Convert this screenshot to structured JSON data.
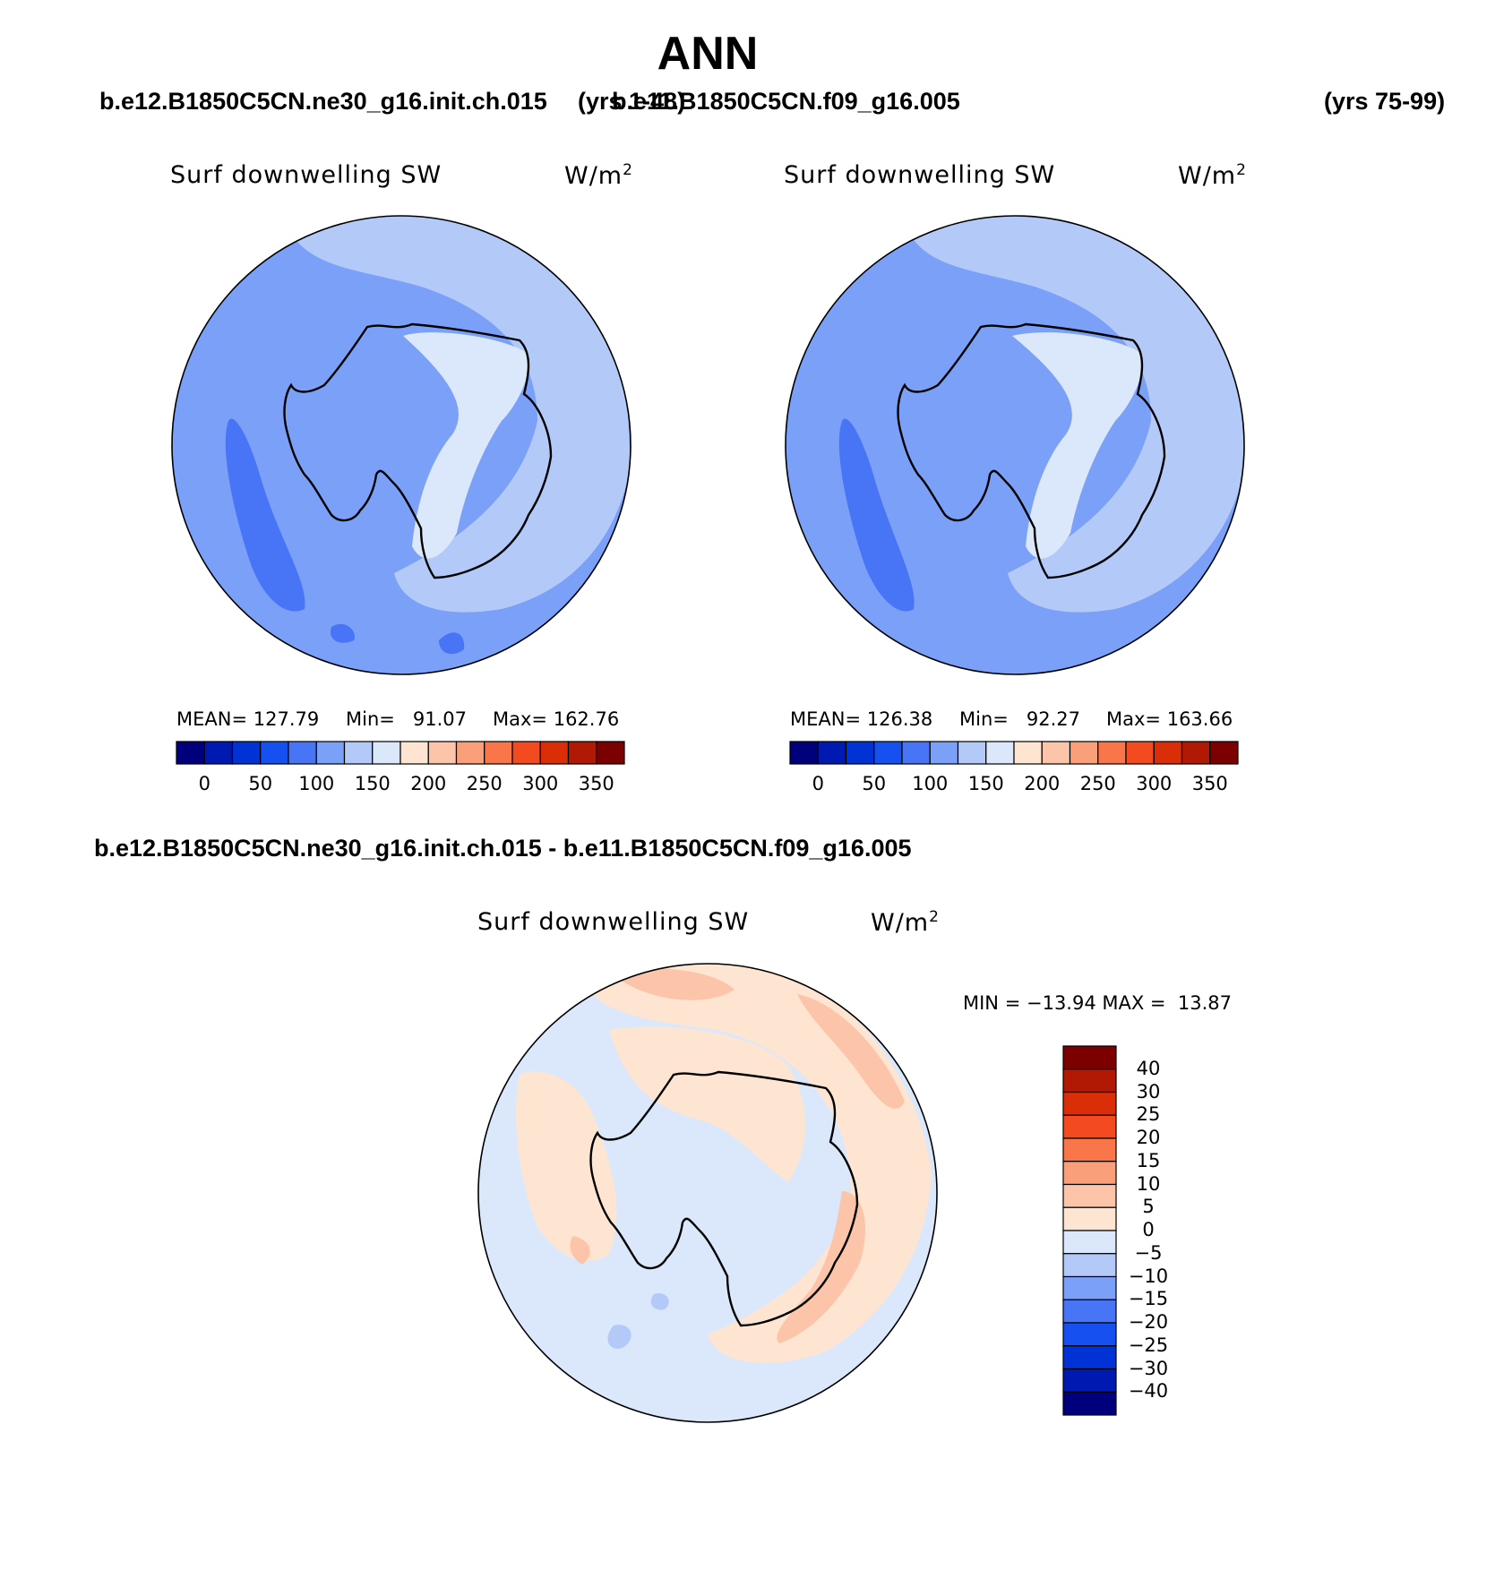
{
  "page": {
    "title": "ANN",
    "case1": "b.e12.B1850C5CN.ne30_g16.init.ch.015",
    "case1_years": "(yrs 1-48)",
    "case2": "b.e11.B1850C5CN.f09_g16.005",
    "case2_years": "(yrs 75-99)",
    "diff_title": "b.e12.B1850C5CN.ne30_g16.init.ch.015 - b.e11.B1850C5CN.f09_g16.005"
  },
  "colors": {
    "abs_levels": [
      "#00007d",
      "#0019b0",
      "#0032d6",
      "#1750f0",
      "#4775f5",
      "#7aa0f8",
      "#b3caf9",
      "#dbe8fb",
      "#fde5d2",
      "#fcc5aa",
      "#f9a07a",
      "#f8764a",
      "#f44a20",
      "#d92e08",
      "#b21905",
      "#7d0000"
    ],
    "diff_levels": [
      "#00007d",
      "#0019b0",
      "#0032d6",
      "#1750f0",
      "#4775f5",
      "#7aa0f8",
      "#b3caf9",
      "#dbe8fb",
      "#fde5d2",
      "#fcc5aa",
      "#f9a07a",
      "#f8764a",
      "#f44a20",
      "#d92e08",
      "#b21905",
      "#7d0000"
    ],
    "antarctica_line": "#000000"
  },
  "chart_data": [
    {
      "type": "heatmap",
      "projection": "south-polar-stereographic",
      "title": "Surf downwelling SW",
      "units": "W/m",
      "units_sup": "2",
      "mean_label": "MEAN=",
      "mean": "127.79",
      "min_label": "Min=",
      "min": "91.07",
      "max_label": "Max=",
      "max": "162.76",
      "colorbar_orientation": "horizontal",
      "colorbar_ticks": [
        "0",
        "50",
        "100",
        "150",
        "200",
        "250",
        "300",
        "350"
      ],
      "field_summary": "ocean 100-150, Southern Ocean band south of Africa/Indian sector 100-125, Antarctic interior 150-175"
    },
    {
      "type": "heatmap",
      "projection": "south-polar-stereographic",
      "title": "Surf downwelling SW",
      "units": "W/m",
      "units_sup": "2",
      "mean_label": "MEAN=",
      "mean": "126.38",
      "min_label": "Min=",
      "min": "92.27",
      "max_label": "Max=",
      "max": "163.66",
      "colorbar_orientation": "horizontal",
      "colorbar_ticks": [
        "0",
        "50",
        "100",
        "150",
        "200",
        "250",
        "300",
        "350"
      ],
      "field_summary": "ocean 100-150, Southern Ocean band 100-125, Antarctic interior 150-175"
    },
    {
      "type": "heatmap",
      "projection": "south-polar-stereographic",
      "title": "Surf downwelling SW",
      "units": "W/m",
      "units_sup": "2",
      "min_label": "MIN =",
      "min": "−13.94",
      "max_label": "MAX =",
      "max": "13.87",
      "colorbar_orientation": "vertical",
      "colorbar_ticks": [
        "40",
        "30",
        "25",
        "20",
        "15",
        "10",
        "5",
        "0",
        "−5",
        "−10",
        "−15",
        "−20",
        "−25",
        "−30",
        "−40"
      ],
      "field_summary": "differences mostly between -5 and +10; positive ring over Southern Ocean (5 to 15), small negative patches (-5 to -10)"
    }
  ]
}
